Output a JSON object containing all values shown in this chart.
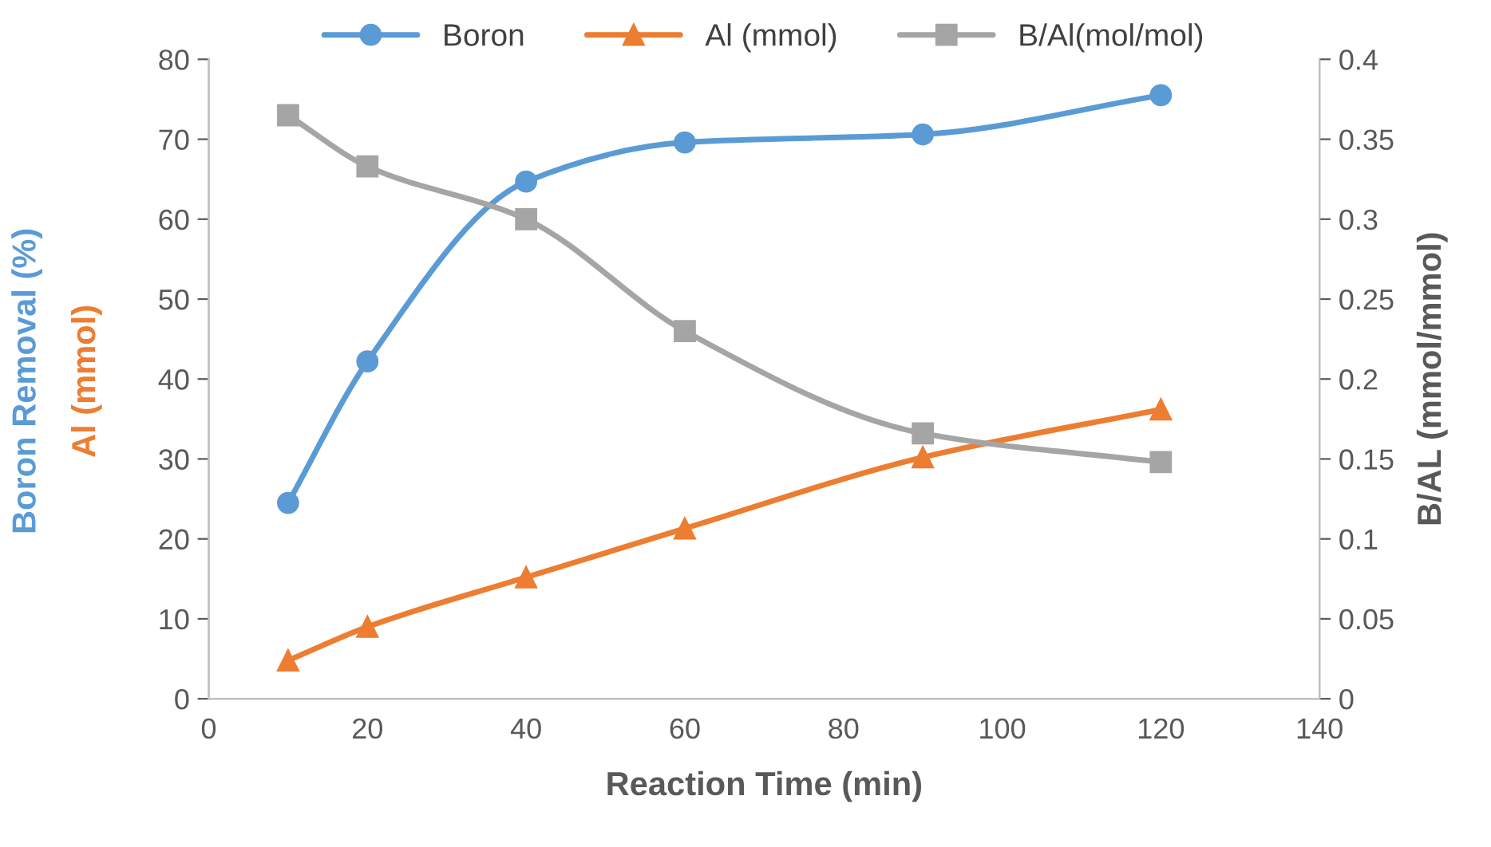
{
  "chart_data": {
    "type": "line",
    "xlabel": "Reaction Time (min)",
    "ylabel": [
      "Boron Removal (%)",
      "Al (mmol)"
    ],
    "y2label": "B/AL (mmol/mmol)",
    "x": [
      10,
      20,
      40,
      60,
      90,
      120
    ],
    "series": [
      {
        "name": "Boron",
        "color": "#5b9bd5",
        "marker": "circle",
        "values": [
          24.5,
          42.2,
          64.7,
          69.6,
          70.6,
          75.5
        ]
      },
      {
        "name": "Al (mmol)",
        "color": "#ed7d31",
        "marker": "triangle",
        "values": [
          4.8,
          9.0,
          15.2,
          21.3,
          30.2,
          36.2
        ]
      },
      {
        "name": "B/Al(mol/mol)",
        "color": "#a5a5a5",
        "marker": "square",
        "axis": "y2",
        "values": [
          0.365,
          0.333,
          0.3,
          0.23,
          0.166,
          0.148
        ]
      }
    ],
    "xlim": [
      0,
      140
    ],
    "xticks": [
      0,
      20,
      40,
      60,
      80,
      100,
      120,
      140
    ],
    "ylim": [
      0,
      80
    ],
    "yticks": [
      0,
      10,
      20,
      30,
      40,
      50,
      60,
      70,
      80
    ],
    "y2lim": [
      0,
      0.4
    ],
    "y2ticks": [
      0,
      0.05,
      0.1,
      0.15,
      0.2,
      0.25,
      0.3,
      0.35,
      0.4
    ],
    "grid": false,
    "legend": "top",
    "line_style": "solid"
  }
}
